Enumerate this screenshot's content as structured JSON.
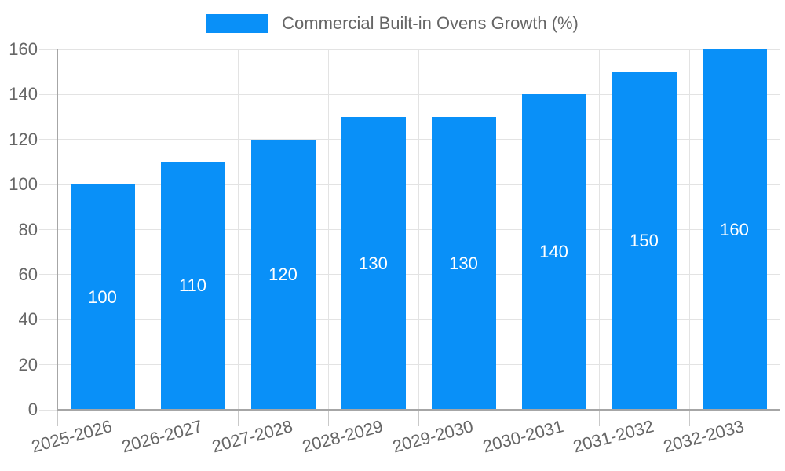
{
  "legend": {
    "series_label": "Commercial Built-in Ovens Growth (%)",
    "position": "top"
  },
  "colors": {
    "bar": "#0990f8",
    "legend_text": "#666666",
    "axis_text": "#666666",
    "value_label": "#ffffff",
    "grid_line": "#e3e3e3",
    "tick_line": "#c9c9c9",
    "axis_line": "#a6a6a6",
    "background": "#ffffff"
  },
  "chart_data": {
    "type": "bar",
    "title": "",
    "xlabel": "",
    "ylabel": "",
    "categories": [
      "2025-2026",
      "2026-2027",
      "2027-2028",
      "2028-2029",
      "2029-2030",
      "2030-2031",
      "2031-2032",
      "2032-2033"
    ],
    "series": [
      {
        "name": "Commercial Built-in Ovens Growth (%)",
        "values": [
          100,
          110,
          120,
          130,
          130,
          140,
          150,
          160
        ]
      }
    ],
    "ylim": [
      0,
      160
    ],
    "yticks": [
      0,
      20,
      40,
      60,
      80,
      100,
      120,
      140,
      160
    ],
    "grid": "on",
    "legend_position": "top",
    "value_labels": "inside-middle",
    "x_tick_rotation_deg": -15
  }
}
